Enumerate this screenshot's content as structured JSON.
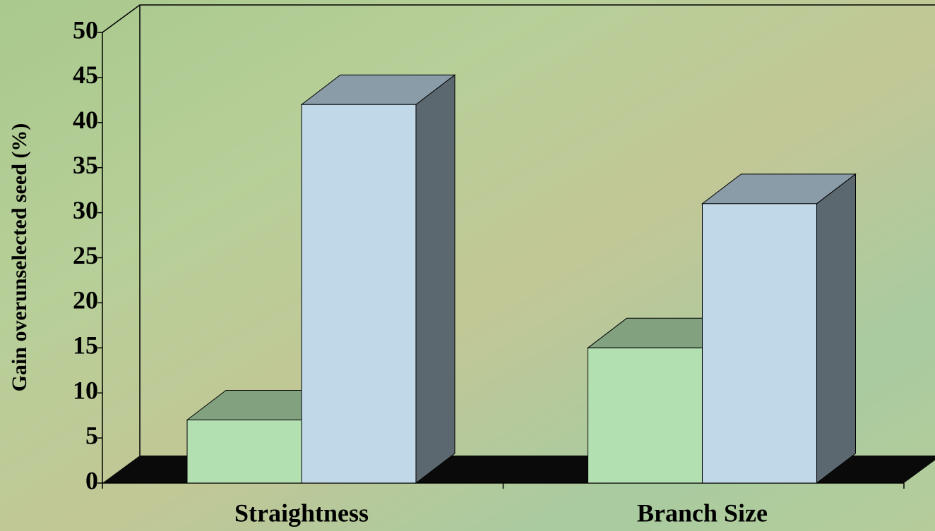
{
  "chart_data": {
    "type": "bar",
    "y_label": "Gain overunselected seed (%)",
    "categories": [
      "Straightness",
      "Branch Size"
    ],
    "series": [
      {
        "color": "#b3e0b0",
        "values": [
          7,
          15
        ]
      },
      {
        "color": "#c0d8e8",
        "values": [
          42,
          31
        ]
      }
    ],
    "ylim": [
      0,
      50
    ],
    "yticks": [
      0,
      5,
      10,
      15,
      20,
      25,
      30,
      35,
      40,
      45,
      50
    ]
  }
}
